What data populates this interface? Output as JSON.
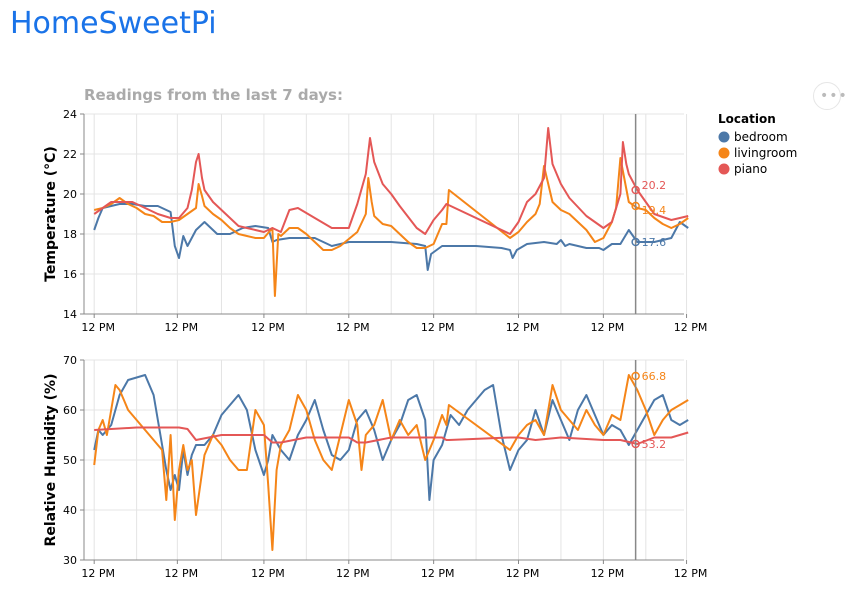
{
  "app": {
    "title": "HomeSweetPi"
  },
  "menu": {
    "icon": "more-horizontal-icon",
    "glyph": "•••"
  },
  "chart_data": {
    "type": "line",
    "subtitle": "Readings from the last 7 days:",
    "legend": {
      "title": "Location",
      "position": "top-right",
      "entries": [
        {
          "name": "bedroom",
          "color": "#4c78a8"
        },
        {
          "name": "livingroom",
          "color": "#f58518"
        },
        {
          "name": "piano",
          "color": "#e45756"
        }
      ]
    },
    "x_axis": {
      "tick_labels": [
        "12 PM",
        "12 PM",
        "12 PM",
        "12 PM",
        "12 PM",
        "12 PM",
        "12 PM",
        "12 PM"
      ],
      "grid": true
    },
    "hover_marker": {
      "position_days": 6.38
    },
    "panels": [
      {
        "ylabel": "Temperature (°C)",
        "ylim": [
          14,
          24
        ],
        "yticks": [
          14,
          16,
          18,
          20,
          22,
          24
        ],
        "grid": true,
        "tooltips": [
          {
            "series": "piano",
            "value": "20.2"
          },
          {
            "series": "livingroom",
            "value": "19.4"
          },
          {
            "series": "bedroom",
            "value": "17.6"
          }
        ],
        "series": [
          {
            "name": "bedroom",
            "color": "#4c78a8",
            "x": [
              0,
              0.05,
              0.1,
              0.2,
              0.3,
              0.45,
              0.6,
              0.75,
              0.9,
              0.95,
              1.0,
              1.05,
              1.1,
              1.2,
              1.3,
              1.45,
              1.6,
              1.75,
              1.9,
              2.05,
              2.1,
              2.15,
              2.3,
              2.6,
              2.8,
              2.9,
              3.0,
              3.1,
              3.2,
              3.5,
              3.8,
              3.9,
              3.93,
              3.97,
              4.1,
              4.3,
              4.5,
              4.8,
              4.9,
              4.93,
              4.98,
              5.1,
              5.3,
              5.45,
              5.5,
              5.55,
              5.6,
              5.8,
              5.9,
              5.95,
              6.0,
              6.1,
              6.2,
              6.3,
              6.4,
              6.6,
              6.8,
              6.9,
              7.0
            ],
            "y": [
              18.2,
              18.8,
              19.3,
              19.4,
              19.5,
              19.5,
              19.4,
              19.4,
              19.1,
              17.4,
              16.8,
              17.9,
              17.4,
              18.2,
              18.6,
              18.0,
              18.0,
              18.3,
              18.4,
              18.3,
              17.6,
              17.7,
              17.8,
              17.8,
              17.4,
              17.5,
              17.6,
              17.6,
              17.6,
              17.6,
              17.5,
              17.4,
              16.2,
              17.0,
              17.4,
              17.4,
              17.4,
              17.3,
              17.2,
              16.8,
              17.2,
              17.5,
              17.6,
              17.5,
              17.7,
              17.4,
              17.5,
              17.3,
              17.3,
              17.3,
              17.2,
              17.5,
              17.5,
              18.2,
              17.6,
              17.6,
              17.8,
              18.6,
              18.3
            ]
          },
          {
            "name": "livingroom",
            "color": "#f58518",
            "x": [
              0,
              0.1,
              0.2,
              0.3,
              0.4,
              0.5,
              0.6,
              0.7,
              0.8,
              0.9,
              1.0,
              1.1,
              1.2,
              1.23,
              1.27,
              1.3,
              1.4,
              1.5,
              1.6,
              1.7,
              1.8,
              1.9,
              2.0,
              2.1,
              2.13,
              2.17,
              2.2,
              2.3,
              2.4,
              2.5,
              2.6,
              2.7,
              2.8,
              2.9,
              3.1,
              3.2,
              3.23,
              3.27,
              3.3,
              3.4,
              3.5,
              3.6,
              3.7,
              3.8,
              3.9,
              4.0,
              4.1,
              4.15,
              4.18,
              4.9,
              5.0,
              5.1,
              5.2,
              5.25,
              5.3,
              5.4,
              5.5,
              5.6,
              5.7,
              5.8,
              5.9,
              6.0,
              6.1,
              6.15,
              6.2,
              6.3,
              6.4,
              6.5,
              6.6,
              6.7,
              6.8,
              6.9,
              7.0
            ],
            "y": [
              19.2,
              19.3,
              19.5,
              19.8,
              19.5,
              19.3,
              19.0,
              18.9,
              18.6,
              18.6,
              18.7,
              19.0,
              19.3,
              20.5,
              19.9,
              19.4,
              19.0,
              18.7,
              18.3,
              18.0,
              17.9,
              17.8,
              17.8,
              18.3,
              14.9,
              18.0,
              17.9,
              18.3,
              18.3,
              18.0,
              17.6,
              17.2,
              17.2,
              17.4,
              18.1,
              19.0,
              20.8,
              19.6,
              18.9,
              18.5,
              18.4,
              18.0,
              17.6,
              17.3,
              17.3,
              17.5,
              18.5,
              18.5,
              20.2,
              17.8,
              18.1,
              18.6,
              19.0,
              19.5,
              21.4,
              19.6,
              19.2,
              19.0,
              18.6,
              18.2,
              17.6,
              17.8,
              18.6,
              19.3,
              21.8,
              19.6,
              19.3,
              19.2,
              18.8,
              18.5,
              18.3,
              18.5,
              18.8
            ]
          },
          {
            "name": "piano",
            "color": "#e45756",
            "x": [
              0,
              0.1,
              0.2,
              0.3,
              0.45,
              0.6,
              0.75,
              0.9,
              1.0,
              1.1,
              1.15,
              1.2,
              1.23,
              1.27,
              1.3,
              1.4,
              1.5,
              1.6,
              1.7,
              1.8,
              2.0,
              2.1,
              2.2,
              2.3,
              2.4,
              2.6,
              2.8,
              3.0,
              3.1,
              3.2,
              3.25,
              3.3,
              3.4,
              3.5,
              3.6,
              3.8,
              3.9,
              4.0,
              4.1,
              4.15,
              4.9,
              5.0,
              5.1,
              5.2,
              5.3,
              5.35,
              5.4,
              5.5,
              5.6,
              5.8,
              6.0,
              6.1,
              6.2,
              6.23,
              6.27,
              6.3,
              6.4,
              6.5,
              6.6,
              6.8,
              6.9,
              7.0
            ],
            "y": [
              19.0,
              19.3,
              19.6,
              19.6,
              19.6,
              19.3,
              19.0,
              18.8,
              18.8,
              19.3,
              20.2,
              21.6,
              22.0,
              20.8,
              20.2,
              19.6,
              19.2,
              18.8,
              18.4,
              18.3,
              18.1,
              18.3,
              18.1,
              19.2,
              19.3,
              18.8,
              18.3,
              18.3,
              19.5,
              21.0,
              22.8,
              21.6,
              20.5,
              20.0,
              19.4,
              18.3,
              18.0,
              18.7,
              19.2,
              19.5,
              18.0,
              18.6,
              19.6,
              20.0,
              20.8,
              23.3,
              21.5,
              20.5,
              19.8,
              18.9,
              18.3,
              18.6,
              20.0,
              22.6,
              21.5,
              21.0,
              20.2,
              19.6,
              19.0,
              18.7,
              18.8,
              18.9
            ]
          }
        ]
      },
      {
        "ylabel": "Relative Humidity (%)",
        "ylim": [
          30,
          70
        ],
        "yticks": [
          30,
          40,
          50,
          60,
          70
        ],
        "grid": true,
        "tooltips": [
          {
            "series": "livingroom",
            "value": "66.8"
          },
          {
            "series": "piano",
            "value": "53.2"
          }
        ],
        "series": [
          {
            "name": "bedroom",
            "color": "#4c78a8",
            "x": [
              0,
              0.05,
              0.1,
              0.2,
              0.3,
              0.4,
              0.5,
              0.6,
              0.7,
              0.8,
              0.85,
              0.9,
              0.95,
              1.0,
              1.05,
              1.1,
              1.15,
              1.2,
              1.3,
              1.4,
              1.5,
              1.6,
              1.7,
              1.8,
              1.9,
              2.0,
              2.05,
              2.1,
              2.2,
              2.3,
              2.4,
              2.5,
              2.6,
              2.7,
              2.8,
              2.9,
              3.0,
              3.1,
              3.2,
              3.3,
              3.4,
              3.5,
              3.6,
              3.7,
              3.8,
              3.9,
              3.95,
              4.0,
              4.1,
              4.2,
              4.3,
              4.4,
              4.5,
              4.6,
              4.7,
              4.8,
              4.9,
              5.0,
              5.1,
              5.2,
              5.3,
              5.4,
              5.5,
              5.6,
              5.7,
              5.8,
              5.9,
              6.0,
              6.1,
              6.2,
              6.3,
              6.4,
              6.5,
              6.6,
              6.7,
              6.8,
              6.9,
              7.0
            ],
            "y": [
              52,
              56,
              55,
              57,
              63,
              66,
              66.5,
              67,
              63,
              53,
              48,
              44,
              47,
              44,
              52,
              47,
              51,
              53,
              53,
              55,
              59,
              61,
              63,
              60,
              52,
              47,
              50,
              55,
              52,
              50,
              55,
              58,
              62,
              56,
              51,
              50,
              52,
              58,
              60,
              56,
              50,
              54,
              57,
              62,
              63,
              58,
              42,
              50,
              53,
              59,
              57,
              60,
              62,
              64,
              65,
              55,
              48,
              52,
              54,
              60,
              55,
              62,
              58,
              54,
              60,
              63,
              59,
              55,
              57,
              56,
              53,
              56,
              59,
              62,
              63,
              58,
              57,
              58
            ]
          },
          {
            "name": "livingroom",
            "color": "#f58518",
            "x": [
              0,
              0.05,
              0.1,
              0.15,
              0.2,
              0.25,
              0.3,
              0.35,
              0.4,
              0.5,
              0.6,
              0.7,
              0.8,
              0.85,
              0.9,
              0.95,
              1.0,
              1.05,
              1.1,
              1.15,
              1.2,
              1.3,
              1.4,
              1.5,
              1.6,
              1.7,
              1.8,
              1.9,
              2.0,
              2.05,
              2.1,
              2.15,
              2.2,
              2.3,
              2.4,
              2.5,
              2.6,
              2.7,
              2.8,
              2.9,
              3.0,
              3.1,
              3.15,
              3.2,
              3.3,
              3.4,
              3.5,
              3.6,
              3.7,
              3.8,
              3.9,
              4.0,
              4.1,
              4.15,
              4.18,
              4.9,
              5.0,
              5.1,
              5.2,
              5.3,
              5.4,
              5.5,
              5.6,
              5.7,
              5.8,
              5.9,
              6.0,
              6.1,
              6.2,
              6.3,
              6.4,
              6.5,
              6.6,
              6.7,
              6.8,
              6.9,
              7.0
            ],
            "y": [
              49,
              56,
              58,
              55,
              60,
              65,
              64,
              62,
              60,
              58,
              56,
              54,
              52,
              42,
              55,
              38,
              48,
              53,
              48,
              50,
              39,
              51,
              55,
              53,
              50,
              48,
              48,
              60,
              57,
              45,
              32,
              48,
              53,
              56,
              63,
              60,
              54,
              50,
              48,
              55,
              62,
              57,
              48,
              55,
              57,
              62,
              54,
              58,
              55,
              57,
              50,
              54,
              59,
              57,
              61,
              52,
              55,
              57,
              58,
              55,
              65,
              60,
              58,
              56,
              60,
              57,
              55,
              59,
              58,
              67,
              64,
              60,
              55,
              58,
              60,
              61,
              62
            ]
          },
          {
            "name": "piano",
            "color": "#e45756",
            "x": [
              0,
              0.5,
              1.0,
              1.1,
              1.2,
              1.5,
              2.0,
              2.1,
              2.2,
              2.5,
              3.0,
              3.1,
              3.2,
              3.5,
              4.0,
              4.1,
              4.15,
              4.18,
              4.9,
              5.0,
              5.2,
              5.5,
              6.0,
              6.2,
              6.4,
              6.6,
              6.8,
              7.0
            ],
            "y": [
              56,
              56.5,
              56.5,
              56.2,
              54,
              55,
              55,
              53.5,
              53.5,
              54.5,
              54.5,
              53.5,
              53.5,
              54.5,
              54.5,
              54.5,
              54,
              54,
              54.5,
              54.5,
              54,
              54.5,
              54,
              54,
              53.2,
              54.5,
              54.5,
              55.5
            ]
          }
        ]
      }
    ]
  }
}
